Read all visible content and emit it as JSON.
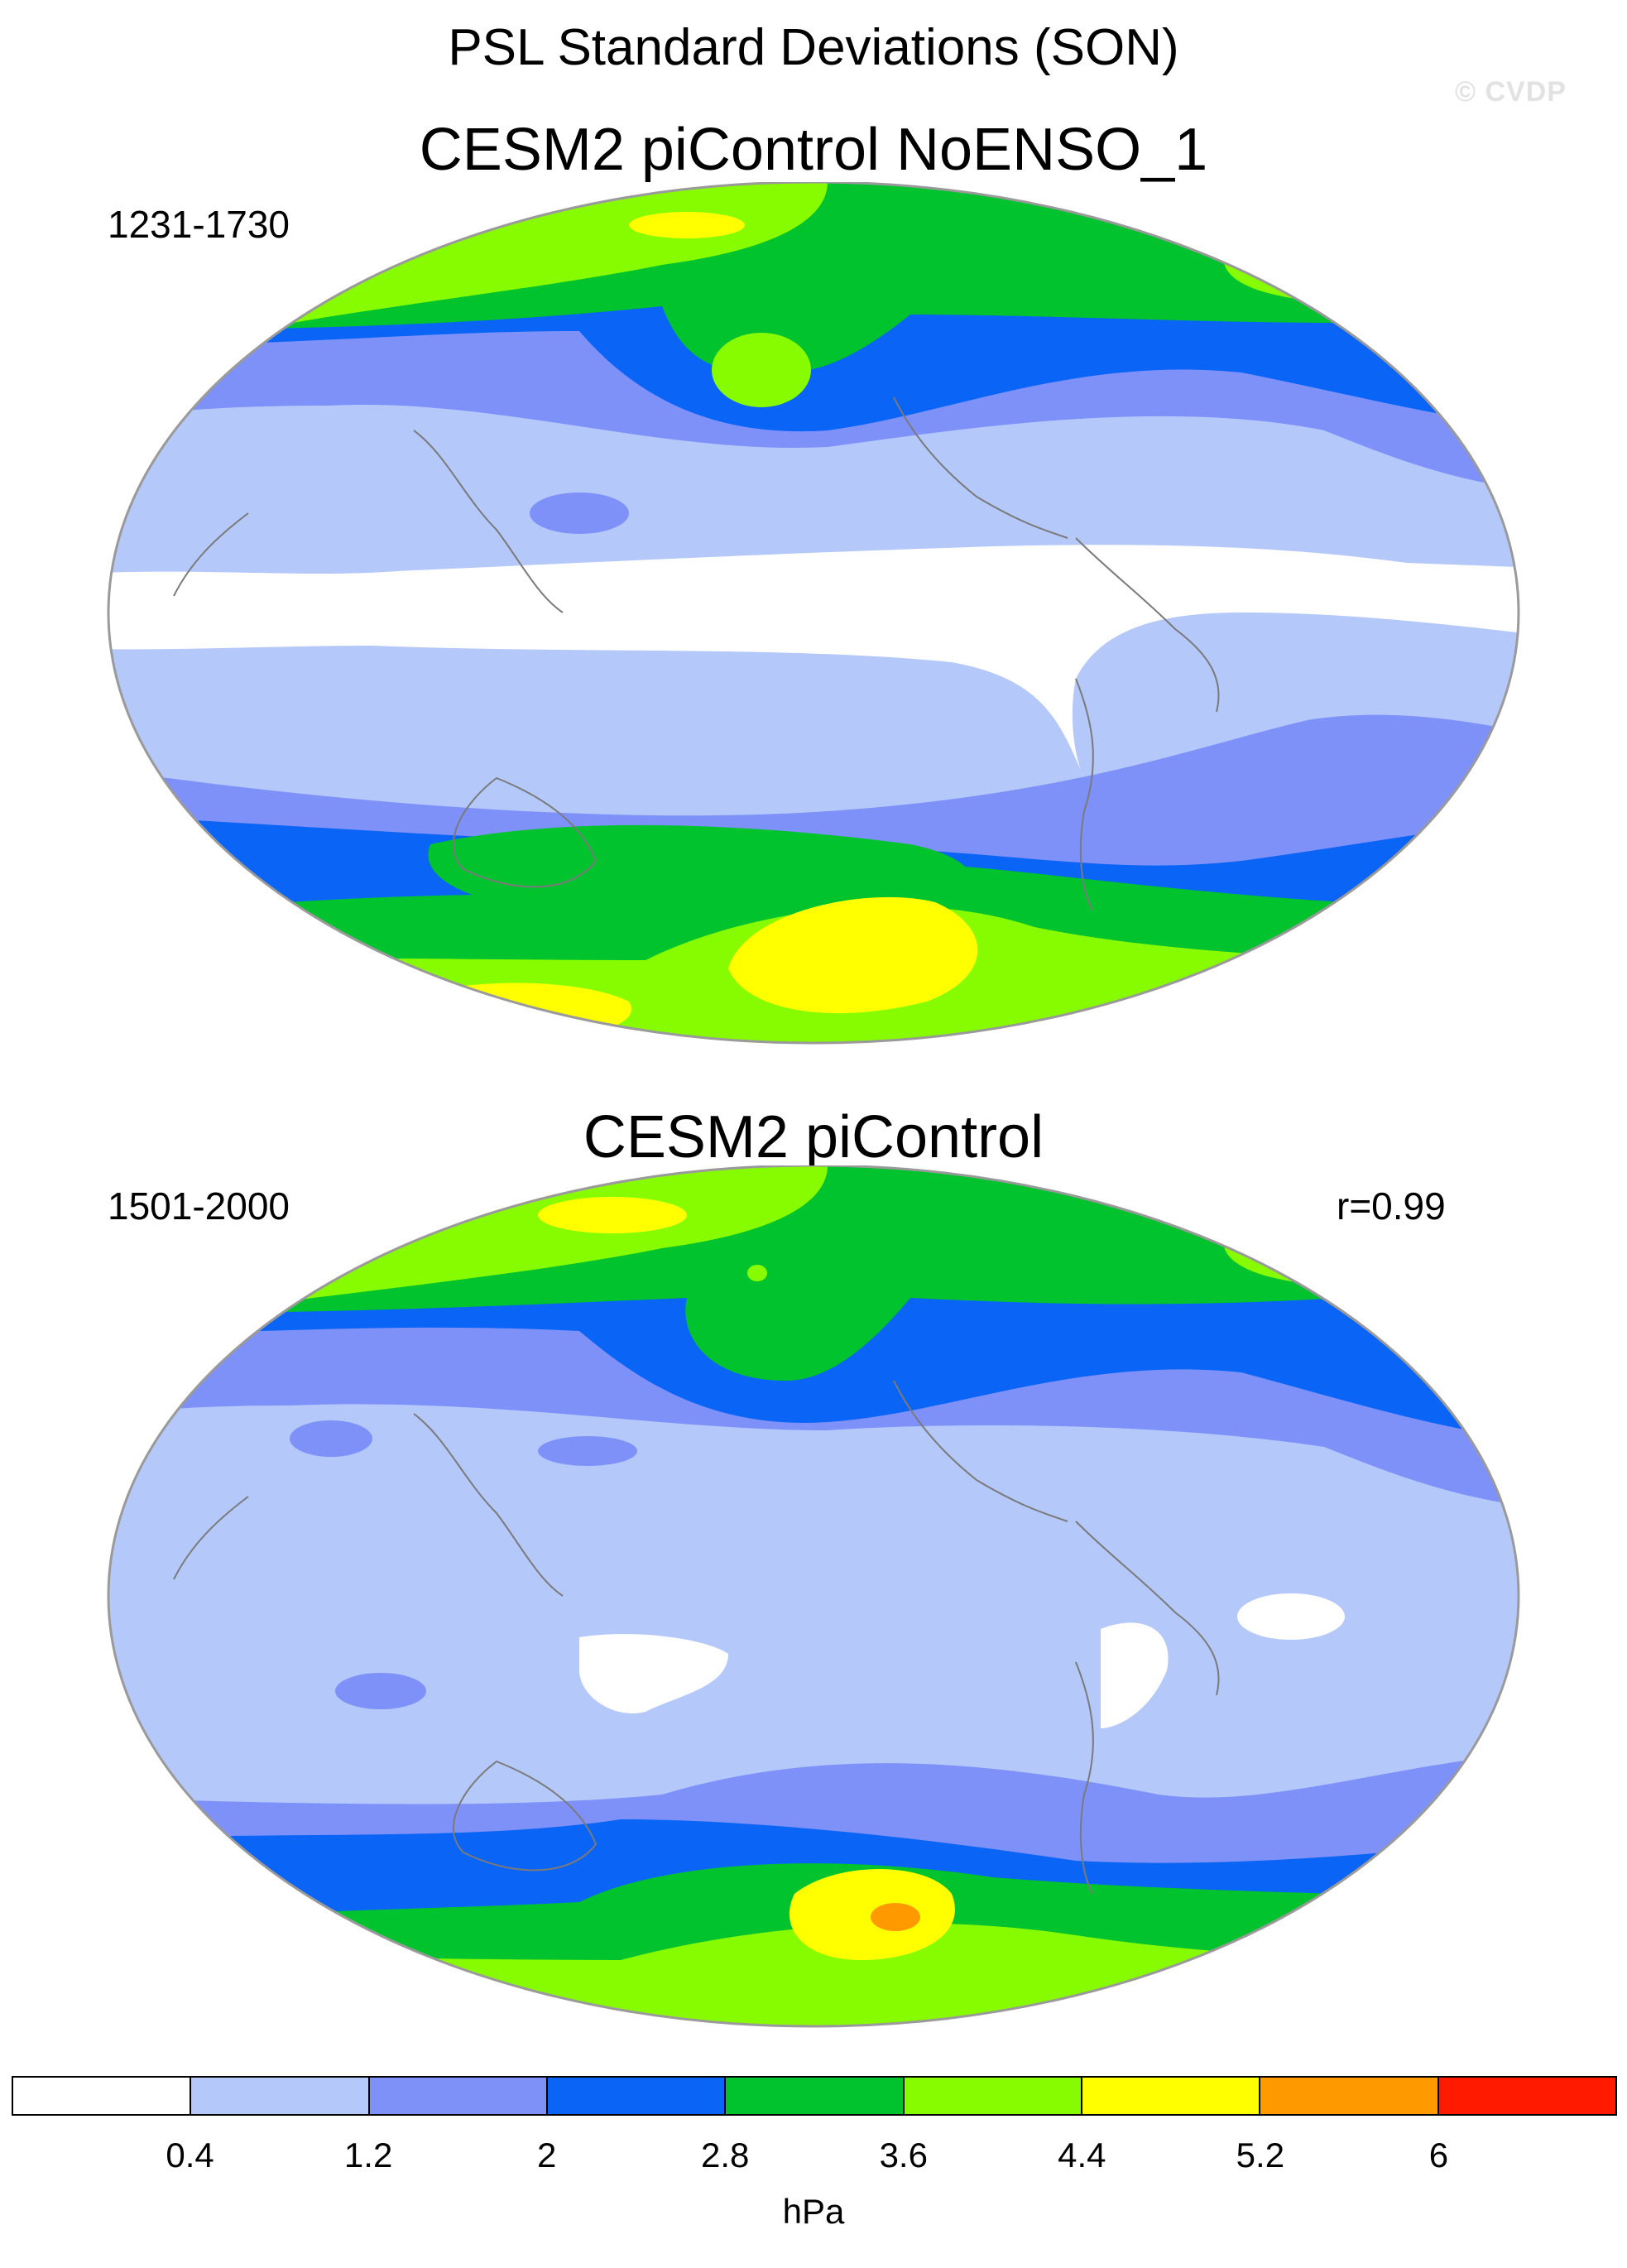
{
  "header": {
    "title": "PSL Standard Deviations (SON)",
    "watermark": "© CVDP"
  },
  "panels": [
    {
      "title": "CESM2 piControl NoENSO_1",
      "period": "1231-1730",
      "correlation": ""
    },
    {
      "title": "CESM2 piControl",
      "period": "1501-2000",
      "correlation": "r=0.99"
    }
  ],
  "projection": "Robinson",
  "colorbar": {
    "colors": [
      "#ffffff",
      "#b4c8fa",
      "#7e91f8",
      "#0a64f5",
      "#00c32e",
      "#87fc00",
      "#ffff00",
      "#ff9900",
      "#ff1a00"
    ],
    "labels": [
      "0.4",
      "1.2",
      "2",
      "2.8",
      "3.6",
      "4.4",
      "5.2",
      "6"
    ],
    "units": "hPa"
  }
}
